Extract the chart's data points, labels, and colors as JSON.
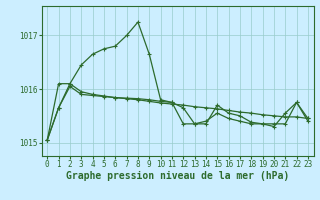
{
  "bg_color": "#cceeff",
  "plot_bg_color": "#cceeff",
  "grid_color": "#99cccc",
  "line_color": "#2d6b2d",
  "hours": [
    0,
    1,
    2,
    3,
    4,
    5,
    6,
    7,
    8,
    9,
    10,
    11,
    12,
    13,
    14,
    15,
    16,
    17,
    18,
    19,
    20,
    21,
    22,
    23
  ],
  "line_sharp": [
    1015.05,
    1015.65,
    1016.1,
    1016.45,
    1016.65,
    1016.75,
    1016.8,
    1017.0,
    1017.25,
    1016.65,
    1015.8,
    1015.75,
    1015.65,
    1015.35,
    1015.4,
    1015.55,
    1015.45,
    1015.4,
    1015.35,
    1015.35,
    1015.3,
    1015.55,
    1015.75,
    1015.4
  ],
  "line_flat": [
    1015.05,
    1016.1,
    1016.1,
    1015.95,
    1015.9,
    1015.87,
    1015.84,
    1015.82,
    1015.8,
    1015.77,
    1015.74,
    1015.72,
    1015.7,
    1015.67,
    1015.65,
    1015.63,
    1015.6,
    1015.57,
    1015.55,
    1015.52,
    1015.5,
    1015.48,
    1015.48,
    1015.45
  ],
  "line_jagged": [
    1015.05,
    1015.65,
    1016.05,
    1015.9,
    1015.88,
    1015.86,
    1015.84,
    1015.83,
    1015.82,
    1015.8,
    1015.77,
    1015.75,
    1015.35,
    1015.35,
    1015.35,
    1015.7,
    1015.55,
    1015.5,
    1015.38,
    1015.35,
    1015.35,
    1015.35,
    1015.75,
    1015.45
  ],
  "yticks": [
    1015,
    1016,
    1017
  ],
  "ylim": [
    1014.75,
    1017.55
  ],
  "xlim": [
    -0.5,
    23.5
  ],
  "markersize": 2.5,
  "linewidth": 0.9,
  "xlabel": "Graphe pression niveau de la mer (hPa)",
  "xlabel_fontsize": 7,
  "tick_fontsize": 5.5,
  "border_color": "#2d6b2d"
}
